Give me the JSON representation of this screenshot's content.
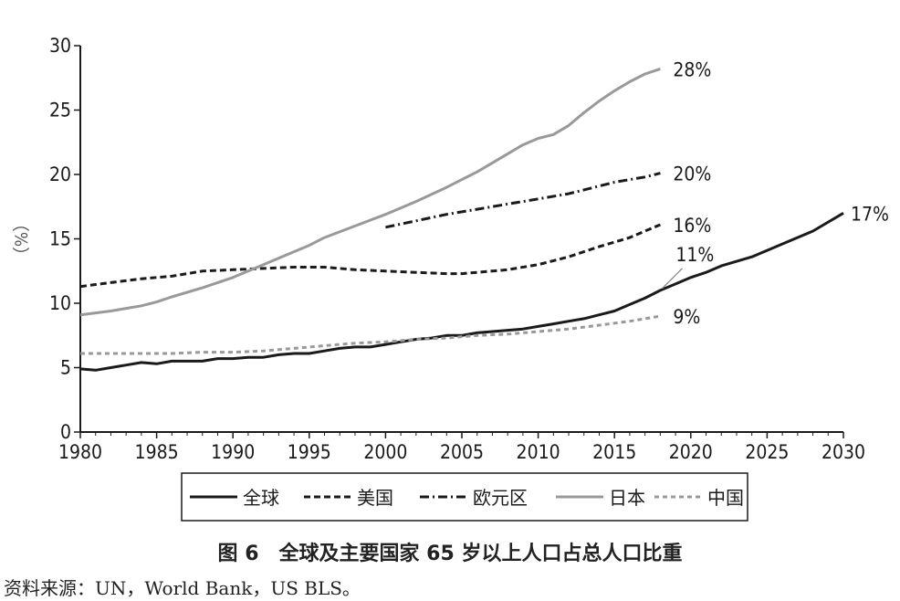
{
  "chart_data": {
    "type": "line",
    "ylabel": "（%）",
    "xlim": [
      1980,
      2030
    ],
    "ylim": [
      0,
      30
    ],
    "x_ticks": [
      "1980",
      "1985",
      "1990",
      "1995",
      "2000",
      "2005",
      "2010",
      "2015",
      "2020",
      "2025",
      "2030"
    ],
    "y_ticks": [
      "0",
      "5",
      "10",
      "15",
      "20",
      "25",
      "30"
    ],
    "legend_position": "bottom",
    "series": [
      {
        "key": "global",
        "name": "全球",
        "style": "solid",
        "color": "#1a1a1a",
        "end_label": "17%",
        "extra_label": "11%",
        "x": [
          1980,
          1981,
          1982,
          1983,
          1984,
          1985,
          1986,
          1987,
          1988,
          1989,
          1990,
          1991,
          1992,
          1993,
          1994,
          1995,
          1996,
          1997,
          1998,
          1999,
          2000,
          2001,
          2002,
          2003,
          2004,
          2005,
          2006,
          2007,
          2008,
          2009,
          2010,
          2011,
          2012,
          2013,
          2014,
          2015,
          2016,
          2017,
          2018,
          2019,
          2020,
          2021,
          2022,
          2024,
          2026,
          2028,
          2030
        ],
        "values": [
          4.9,
          4.8,
          5.0,
          5.2,
          5.4,
          5.3,
          5.5,
          5.5,
          5.5,
          5.7,
          5.7,
          5.8,
          5.8,
          6.0,
          6.1,
          6.1,
          6.3,
          6.5,
          6.6,
          6.6,
          6.8,
          7.0,
          7.2,
          7.3,
          7.5,
          7.5,
          7.7,
          7.8,
          7.9,
          8.0,
          8.2,
          8.4,
          8.6,
          8.8,
          9.1,
          9.4,
          9.9,
          10.4,
          11.0,
          11.5,
          12.0,
          12.4,
          12.9,
          13.6,
          14.6,
          15.6,
          17.0
        ]
      },
      {
        "key": "us",
        "name": "美国",
        "style": "dashed",
        "color": "#1a1a1a",
        "end_label": "16%",
        "x": [
          1980,
          1982,
          1984,
          1986,
          1988,
          1990,
          1992,
          1994,
          1996,
          1998,
          2000,
          2002,
          2004,
          2005,
          2006,
          2008,
          2010,
          2012,
          2014,
          2016,
          2017,
          2018
        ],
        "values": [
          11.3,
          11.6,
          11.9,
          12.1,
          12.5,
          12.6,
          12.7,
          12.8,
          12.8,
          12.6,
          12.5,
          12.4,
          12.3,
          12.3,
          12.4,
          12.6,
          13.0,
          13.6,
          14.4,
          15.1,
          15.6,
          16.1
        ]
      },
      {
        "key": "euro",
        "name": "欧元区",
        "style": "dashdot",
        "color": "#1a1a1a",
        "end_label": "20%",
        "x": [
          2000,
          2002,
          2004,
          2006,
          2008,
          2010,
          2012,
          2014,
          2015,
          2016,
          2017,
          2018
        ],
        "values": [
          15.9,
          16.4,
          16.9,
          17.3,
          17.7,
          18.1,
          18.5,
          19.1,
          19.4,
          19.6,
          19.8,
          20.1
        ]
      },
      {
        "key": "japan",
        "name": "日本",
        "style": "solid",
        "color": "#999999",
        "end_label": "28%",
        "x": [
          1980,
          1982,
          1984,
          1985,
          1986,
          1988,
          1990,
          1992,
          1993,
          1994,
          1995,
          1996,
          1998,
          2000,
          2002,
          2004,
          2005,
          2006,
          2008,
          2009,
          2010,
          2011,
          2012,
          2013,
          2014,
          2015,
          2016,
          2017,
          2018
        ],
        "values": [
          9.1,
          9.4,
          9.8,
          10.1,
          10.5,
          11.2,
          12.0,
          13.0,
          13.5,
          14.0,
          14.5,
          15.1,
          16.0,
          16.9,
          17.9,
          19.0,
          19.6,
          20.2,
          21.6,
          22.3,
          22.8,
          23.1,
          23.8,
          24.8,
          25.7,
          26.5,
          27.2,
          27.8,
          28.2
        ]
      },
      {
        "key": "china",
        "name": "中国",
        "style": "dotted",
        "color": "#999999",
        "end_label": "9%",
        "x": [
          1980,
          1982,
          1984,
          1986,
          1988,
          1990,
          1992,
          1994,
          1996,
          1998,
          2000,
          2002,
          2004,
          2006,
          2008,
          2010,
          2012,
          2014,
          2016,
          2018
        ],
        "values": [
          6.1,
          6.1,
          6.1,
          6.1,
          6.2,
          6.2,
          6.3,
          6.5,
          6.7,
          6.9,
          7.0,
          7.2,
          7.3,
          7.5,
          7.6,
          7.8,
          8.0,
          8.3,
          8.6,
          9.0
        ]
      }
    ]
  },
  "caption": "图 6　全球及主要国家 65 岁以上人口占总人口比重",
  "source": "资料来源：UN，World Bank，US BLS。"
}
